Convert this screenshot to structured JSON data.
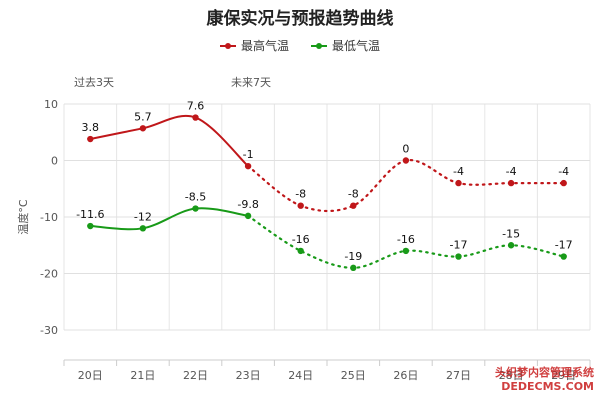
{
  "title": "康保实况与预报趋势曲线",
  "legend": [
    {
      "name": "最高气温",
      "color": "#c0171a"
    },
    {
      "name": "最低气温",
      "color": "#189a18"
    }
  ],
  "periods": {
    "past": "过去3天",
    "future": "未来7天"
  },
  "chart_data": {
    "type": "line",
    "title": "康保实况与预报趋势曲线",
    "xlabel": "",
    "ylabel": "温度°C",
    "categories": [
      "20日",
      "21日",
      "22日",
      "23日",
      "24日",
      "25日",
      "26日",
      "27日",
      "28日",
      "29日"
    ],
    "ylim": [
      -30,
      10
    ],
    "yticks": [
      10,
      0,
      -10,
      -20,
      -30
    ],
    "grid": true,
    "legend_position": "top-center",
    "observed_count": 4,
    "series": [
      {
        "name": "最高气温",
        "color": "#c0171a",
        "values": [
          3.8,
          5.7,
          7.6,
          -1,
          -8,
          -8,
          0,
          -4,
          -4,
          -4
        ],
        "labels": [
          "3.8",
          "5.7",
          "7.6",
          "-1",
          "-8",
          "-8",
          "0",
          "-4",
          "-4",
          "-4"
        ]
      },
      {
        "name": "最低气温",
        "color": "#189a18",
        "values": [
          -11.6,
          -12,
          -8.5,
          -9.8,
          -16,
          -19,
          -16,
          -17,
          -15,
          -17
        ],
        "labels": [
          "-11.6",
          "-12",
          "-8.5",
          "-9.8",
          "-16",
          "-19",
          "-16",
          "-17",
          "-15",
          "-17"
        ]
      }
    ]
  },
  "watermark": {
    "line1": "织梦内容管理系统",
    "line2": "DEDECMS.COM",
    "prefix": "头"
  }
}
